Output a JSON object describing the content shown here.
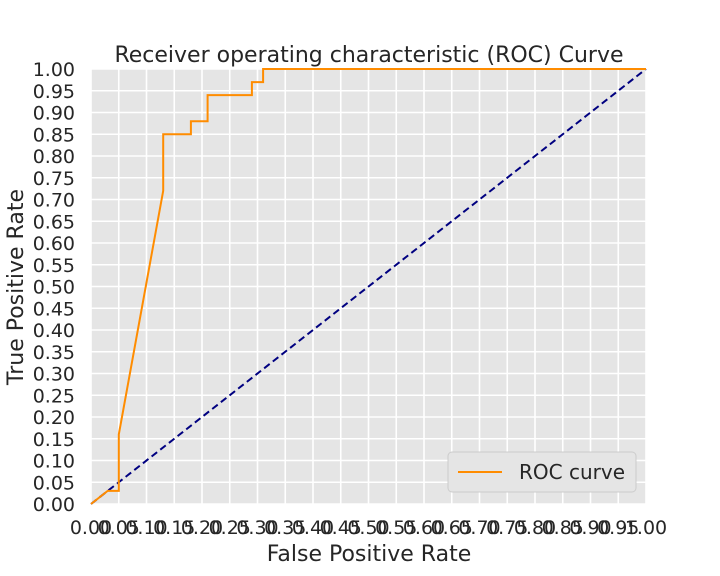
{
  "chart_data": {
    "type": "line",
    "title": "Receiver operating characteristic (ROC) Curve",
    "xlabel": "False Positive Rate",
    "ylabel": "True Positive Rate",
    "xlim": [
      0,
      1
    ],
    "ylim": [
      0,
      1
    ],
    "grid": true,
    "legend_position": "lower-right",
    "x_ticks": [
      "0.00",
      "0.05",
      "0.10",
      "0.15",
      "0.20",
      "0.25",
      "0.30",
      "0.35",
      "0.40",
      "0.45",
      "0.50",
      "0.55",
      "0.60",
      "0.65",
      "0.70",
      "0.75",
      "0.80",
      "0.85",
      "0.90",
      "0.95",
      "1.00"
    ],
    "y_ticks": [
      "0.00",
      "0.05",
      "0.10",
      "0.15",
      "0.20",
      "0.25",
      "0.30",
      "0.35",
      "0.40",
      "0.45",
      "0.50",
      "0.55",
      "0.60",
      "0.65",
      "0.70",
      "0.75",
      "0.80",
      "0.85",
      "0.90",
      "0.95",
      "1.00"
    ],
    "series": [
      {
        "name": "ROC curve",
        "color": "#ff8c00",
        "x": [
          0.0,
          0.03,
          0.05,
          0.05,
          0.05,
          0.13,
          0.13,
          0.18,
          0.18,
          0.21,
          0.21,
          0.29,
          0.29,
          0.31,
          0.31,
          1.0
        ],
        "y": [
          0.0,
          0.03,
          0.03,
          0.04,
          0.16,
          0.72,
          0.85,
          0.85,
          0.88,
          0.88,
          0.94,
          0.94,
          0.97,
          0.97,
          1.0,
          1.0
        ]
      },
      {
        "color": "#000080",
        "dashed": true,
        "x": [
          0,
          1
        ],
        "y": [
          0,
          1
        ]
      }
    ]
  }
}
